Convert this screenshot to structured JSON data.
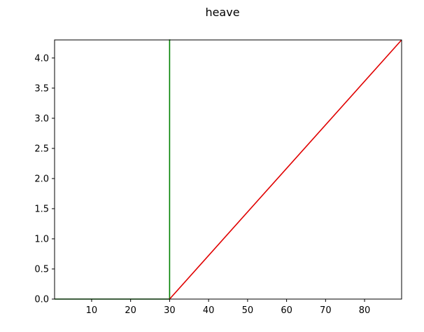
{
  "chart_data": {
    "type": "line",
    "title": "heave",
    "xlabel": "",
    "ylabel": "",
    "xlim": [
      0.5,
      89.5
    ],
    "ylim": [
      0,
      4.3
    ],
    "x_ticks": [
      10,
      20,
      30,
      40,
      50,
      60,
      70,
      80
    ],
    "y_ticks": [
      0.0,
      0.5,
      1.0,
      1.5,
      2.0,
      2.5,
      3.0,
      3.5,
      4.0
    ],
    "x_tick_labels": [
      "10",
      "20",
      "30",
      "40",
      "50",
      "60",
      "70",
      "80"
    ],
    "y_tick_labels": [
      "0.0",
      "0.5",
      "1.0",
      "1.5",
      "2.0",
      "2.5",
      "3.0",
      "3.5",
      "4.0"
    ],
    "grid": false,
    "series": [
      {
        "color": "#008000",
        "x": [
          0.5,
          30,
          30,
          30.2
        ],
        "y": [
          0,
          0,
          4.3,
          4.3
        ]
      },
      {
        "color": "#e00000",
        "x": [
          30,
          89.5
        ],
        "y": [
          0,
          4.3
        ]
      }
    ]
  }
}
